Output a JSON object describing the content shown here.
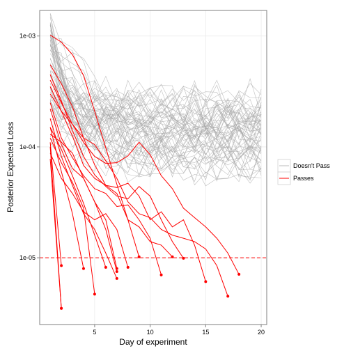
{
  "chart_data": {
    "type": "line",
    "xlabel": "Day of experiment",
    "ylabel": "Posterior Expected Loss",
    "x_ticks": [
      5,
      10,
      15,
      20
    ],
    "y_ticks": [
      {
        "value": 1e-05,
        "label": "1e-05"
      },
      {
        "value": 0.0001,
        "label": "1e-04"
      },
      {
        "value": 0.001,
        "label": "1e-03"
      }
    ],
    "xlim": [
      0.05,
      20.5
    ],
    "ylim": [
      2.5e-06,
      0.0017
    ],
    "y_scale": "log",
    "grid": true,
    "legend_position": "right",
    "threshold": {
      "value": 1e-05,
      "color": "#ff0000",
      "style": "dashed"
    },
    "colors": {
      "doesnt_pass": "#aaaaaa",
      "passes": "#ff0000",
      "panel_bg": "#ffffff",
      "grid": "#ebebeb",
      "border": "#7f7f7f"
    },
    "legend": [
      {
        "label": "Doesn't Pass",
        "color": "#bbbbbb"
      },
      {
        "label": "Passes",
        "color": "#ff0000"
      }
    ],
    "passes_series": [
      {
        "x": [
          1,
          2,
          3,
          4,
          5,
          6,
          7,
          8,
          9
        ],
        "y": [
          0.00102,
          0.00088,
          0.00068,
          0.00044,
          0.00021,
          9.8e-05,
          4.6e-05,
          2.2e-05,
          1.02e-05
        ]
      },
      {
        "x": [
          1,
          2,
          3,
          4,
          5,
          6,
          7,
          8,
          9,
          10,
          11,
          12
        ],
        "y": [
          0.00055,
          0.00037,
          0.00023,
          0.00012,
          6.9e-05,
          4.5e-05,
          3.8e-05,
          2.2e-05,
          1.9e-05,
          1.4e-05,
          1.3e-05,
          1.02e-05
        ]
      },
      {
        "x": [
          1,
          2,
          3,
          4,
          5,
          6,
          7,
          8,
          9,
          10,
          11,
          12,
          13
        ],
        "y": [
          0.00045,
          0.00026,
          0.00014,
          8.2e-05,
          5.6e-05,
          4.4e-05,
          3.6e-05,
          3.4e-05,
          4.4e-05,
          3.6e-05,
          2.2e-05,
          1.4e-05,
          9.9e-06
        ]
      },
      {
        "x": [
          1,
          2,
          3,
          4,
          5,
          6,
          7,
          8,
          9,
          10,
          11,
          12,
          13,
          14,
          15
        ],
        "y": [
          0.00035,
          0.00021,
          0.000125,
          6.8e-05,
          5.2e-05,
          4.5e-05,
          4.3e-05,
          4.7e-05,
          3.6e-05,
          2.2e-05,
          2.6e-05,
          1.9e-05,
          2.2e-05,
          1.3e-05,
          6.1e-06
        ]
      },
      {
        "x": [
          1,
          2,
          3,
          4,
          5,
          6,
          7,
          8,
          9,
          10,
          11,
          12,
          13,
          14,
          15,
          16,
          17
        ],
        "y": [
          0.0003,
          0.00021,
          0.00016,
          0.00012,
          0.000105,
          7.5e-05,
          5.2e-05,
          3.2e-05,
          2.5e-05,
          2.3e-05,
          1.8e-05,
          1.6e-05,
          1.5e-05,
          1.4e-05,
          1.2e-05,
          8.5e-06,
          4.5e-06
        ]
      },
      {
        "x": [
          1,
          2,
          3,
          4,
          5,
          6,
          7,
          8,
          9,
          10,
          11,
          12,
          13,
          14,
          15,
          16,
          17,
          18
        ],
        "y": [
          0.0004,
          0.00025,
          0.00016,
          0.00011,
          8.2e-05,
          7.1e-05,
          7.2e-05,
          8.3e-05,
          0.00011,
          8.5e-05,
          5.5e-05,
          4.2e-05,
          2.8e-05,
          2.3e-05,
          1.9e-05,
          1.5e-05,
          1.1e-05,
          7.1e-06
        ]
      },
      {
        "x": [
          1,
          2,
          3,
          4,
          5,
          6,
          7,
          8,
          9,
          10,
          11
        ],
        "y": [
          0.00025,
          0.00012,
          8e-05,
          5.5e-05,
          4.2e-05,
          3.8e-05,
          2.9e-05,
          3e-05,
          2.2e-05,
          1.5e-05,
          7e-06
        ]
      },
      {
        "x": [
          1,
          2,
          3,
          4,
          5,
          6,
          7
        ],
        "y": [
          0.00022,
          0.000105,
          6.4e-05,
          5.2e-05,
          3.2e-05,
          1.8e-05,
          7.5e-06
        ]
      },
      {
        "x": [
          1,
          2,
          3,
          4,
          5,
          6,
          7
        ],
        "y": [
          0.00018,
          8.2e-05,
          4.5e-05,
          2.5e-05,
          1.8e-05,
          1.1e-05,
          6.5e-06
        ]
      },
      {
        "x": [
          1,
          2,
          3,
          4,
          5,
          6
        ],
        "y": [
          0.00015,
          9.5e-05,
          5.5e-05,
          3.1e-05,
          1.6e-05,
          8.2e-06
        ]
      },
      {
        "x": [
          1,
          2,
          3,
          4,
          5,
          6,
          7
        ],
        "y": [
          0.00013,
          0.00011,
          8.8e-05,
          5.2e-05,
          3.2e-05,
          2.2e-05,
          8e-06
        ]
      },
      {
        "x": [
          1,
          2,
          3,
          4,
          5
        ],
        "y": [
          0.00012,
          7.2e-05,
          4.8e-05,
          2.8e-05,
          4.7e-06
        ]
      },
      {
        "x": [
          1,
          2,
          3,
          4
        ],
        "y": [
          0.00015,
          6e-05,
          2.5e-05,
          8e-06
        ]
      },
      {
        "x": [
          1,
          2
        ],
        "y": [
          0.00011,
          8.5e-06
        ]
      },
      {
        "x": [
          1,
          2
        ],
        "y": [
          0.0001,
          3.5e-06
        ]
      },
      {
        "x": [
          1,
          2
        ],
        "y": [
          7.8e-05,
          3.5e-06
        ]
      },
      {
        "x": [
          1,
          2,
          3,
          4,
          5,
          6,
          7,
          8
        ],
        "y": [
          8.8e-05,
          5.2e-05,
          3.8e-05,
          2.6e-05,
          2.2e-05,
          2.5e-05,
          1.8e-05,
          8.2e-06
        ]
      }
    ]
  }
}
